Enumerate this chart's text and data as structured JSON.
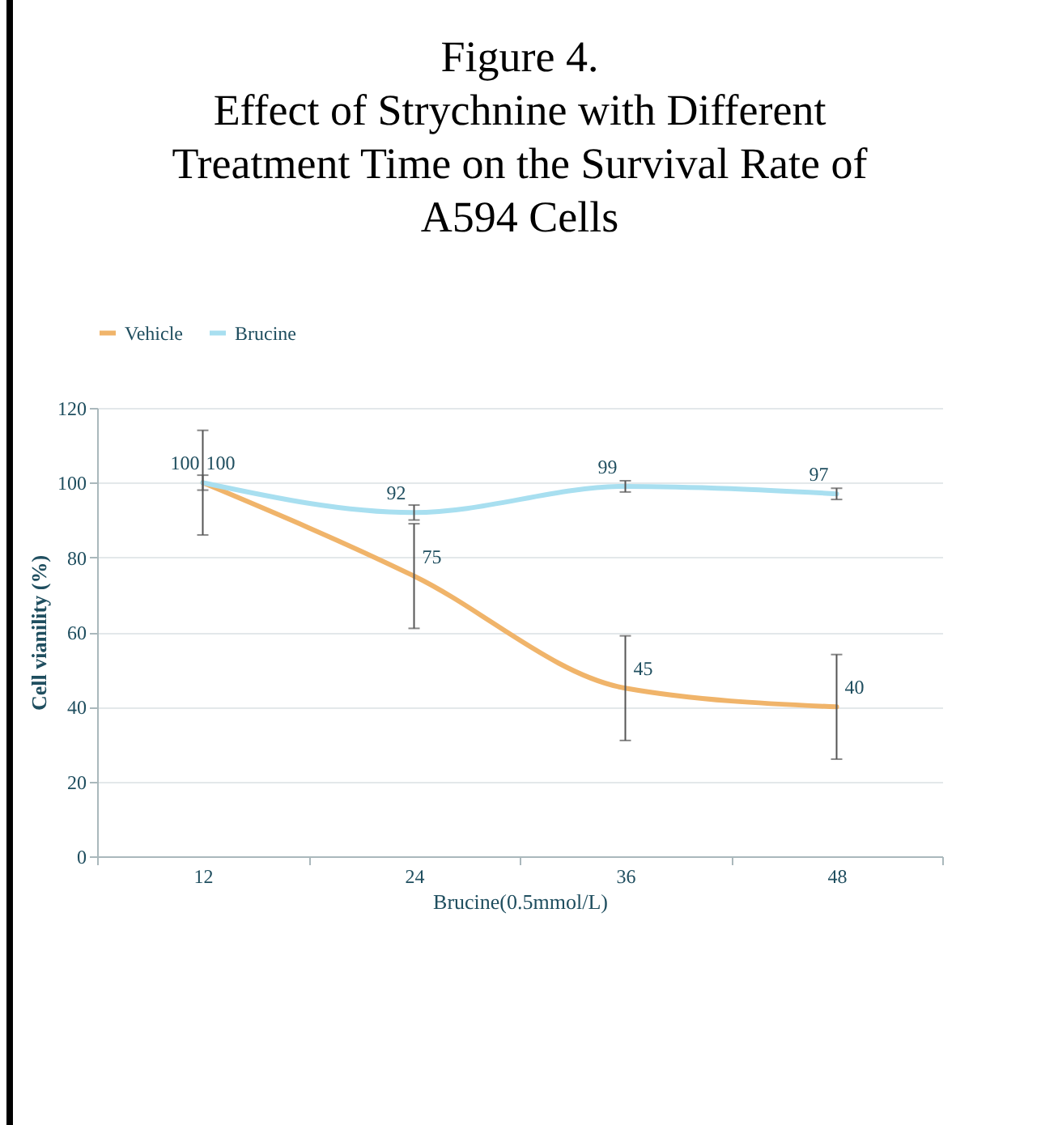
{
  "chart_data": {
    "type": "line",
    "title": "Figure 4.\nEffect of Strychnine with Different\nTreatment Time on the Survival Rate of\nA594 Cells",
    "xlabel": "Brucine(0.5mmol/L)",
    "ylabel": "Cell vianility (%)",
    "categories": [
      "12",
      "24",
      "36",
      "48"
    ],
    "series": [
      {
        "name": "Vehicle",
        "color": "#f0b46a",
        "values": [
          100,
          75,
          45,
          40
        ],
        "errors": [
          14,
          14,
          14,
          14
        ]
      },
      {
        "name": "Brucine",
        "color": "#a8dff0",
        "values": [
          100,
          92,
          99,
          97
        ],
        "errors": [
          2,
          2,
          1.5,
          1.5
        ]
      }
    ],
    "ylim": [
      0,
      120
    ],
    "yticks": [
      0,
      20,
      40,
      60,
      80,
      100,
      120
    ],
    "grid": "y",
    "legend": "top",
    "data_labels": true,
    "marker": "none",
    "line_style": "solid"
  }
}
